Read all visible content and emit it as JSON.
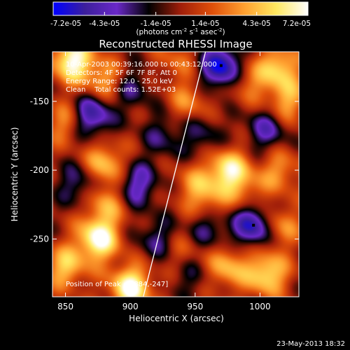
{
  "colorbar": {
    "ticks": [
      "-7.2e-05",
      "-4.3e-05",
      "-1.4e-05",
      "1.4e-05",
      "4.3e-05",
      "7.2e-05"
    ],
    "unit_parts": [
      "(photons cm",
      "-2",
      " s",
      "-1",
      " asec",
      "-2",
      ")"
    ],
    "range": [
      -7.2e-05,
      7.2e-05
    ],
    "colors": [
      "#0000ff",
      "#3c1f9c",
      "#6a28c8",
      "#000000",
      "#a01e0a",
      "#e0500a",
      "#ffa030",
      "#ffe860",
      "#ffffff"
    ]
  },
  "chart_data": {
    "type": "heatmap",
    "title": "Reconstructed RHESSI Image",
    "xlabel": "Heliocentric X (arcsec)",
    "ylabel": "Heliocentric Y (arcsec)",
    "xlim": [
      840,
      1030
    ],
    "ylim": [
      -292,
      -114
    ],
    "xticks": [
      850,
      900,
      950,
      1000
    ],
    "yticks": [
      -150,
      -200,
      -250
    ],
    "info_lines": [
      "10-Apr-2003 00:39:16.000 to 00:43:12.000",
      "Detectors: 4F 5F 6F 7F 8F, Att 0",
      "Energy Range: 12.0 - 25.0 keV",
      "Clean    Total counts: 1.52E+03"
    ],
    "peak_label": "Position of Peak = [884,-247]",
    "peak": [
      884,
      -247
    ],
    "limb_line": [
      [
        958,
        -114
      ],
      [
        910,
        -292
      ]
    ],
    "markers": [
      [
        970,
        -124
      ],
      [
        995,
        -240
      ]
    ],
    "blobs": [
      {
        "x": 855,
        "y": -120,
        "v": 1.0
      },
      {
        "x": 880,
        "y": -135,
        "v": 0.55
      },
      {
        "x": 850,
        "y": -165,
        "v": 0.45
      },
      {
        "x": 870,
        "y": -160,
        "v": -0.8
      },
      {
        "x": 900,
        "y": -140,
        "v": -0.4
      },
      {
        "x": 935,
        "y": -120,
        "v": 0.3
      },
      {
        "x": 945,
        "y": -150,
        "v": 0.4
      },
      {
        "x": 970,
        "y": -125,
        "v": -1.0
      },
      {
        "x": 990,
        "y": -135,
        "v": 0.4
      },
      {
        "x": 1015,
        "y": -125,
        "v": 0.7
      },
      {
        "x": 1020,
        "y": -150,
        "v": 0.55
      },
      {
        "x": 880,
        "y": -195,
        "v": 0.65
      },
      {
        "x": 860,
        "y": -210,
        "v": -0.45
      },
      {
        "x": 905,
        "y": -210,
        "v": -0.6
      },
      {
        "x": 925,
        "y": -175,
        "v": -0.35
      },
      {
        "x": 880,
        "y": -225,
        "v": 0.5
      },
      {
        "x": 950,
        "y": -210,
        "v": 0.4
      },
      {
        "x": 975,
        "y": -200,
        "v": 0.85
      },
      {
        "x": 955,
        "y": -175,
        "v": -0.35
      },
      {
        "x": 1005,
        "y": -170,
        "v": -0.55
      },
      {
        "x": 1015,
        "y": -200,
        "v": 0.45
      },
      {
        "x": 990,
        "y": -215,
        "v": 0.35
      },
      {
        "x": 875,
        "y": -250,
        "v": 1.0
      },
      {
        "x": 900,
        "y": -285,
        "v": 1.0
      },
      {
        "x": 850,
        "y": -270,
        "v": 0.65
      },
      {
        "x": 920,
        "y": -250,
        "v": -0.4
      },
      {
        "x": 960,
        "y": -240,
        "v": -0.5
      },
      {
        "x": 995,
        "y": -240,
        "v": -0.9
      },
      {
        "x": 975,
        "y": -270,
        "v": 0.6
      },
      {
        "x": 1015,
        "y": -240,
        "v": 0.5
      },
      {
        "x": 1005,
        "y": -275,
        "v": 0.8
      },
      {
        "x": 945,
        "y": -275,
        "v": -0.3
      },
      {
        "x": 940,
        "y": -260,
        "v": 0.3
      },
      {
        "x": 960,
        "y": -225,
        "v": 0.45
      }
    ]
  },
  "footer": {
    "date": "23-May-2013 18:32"
  }
}
